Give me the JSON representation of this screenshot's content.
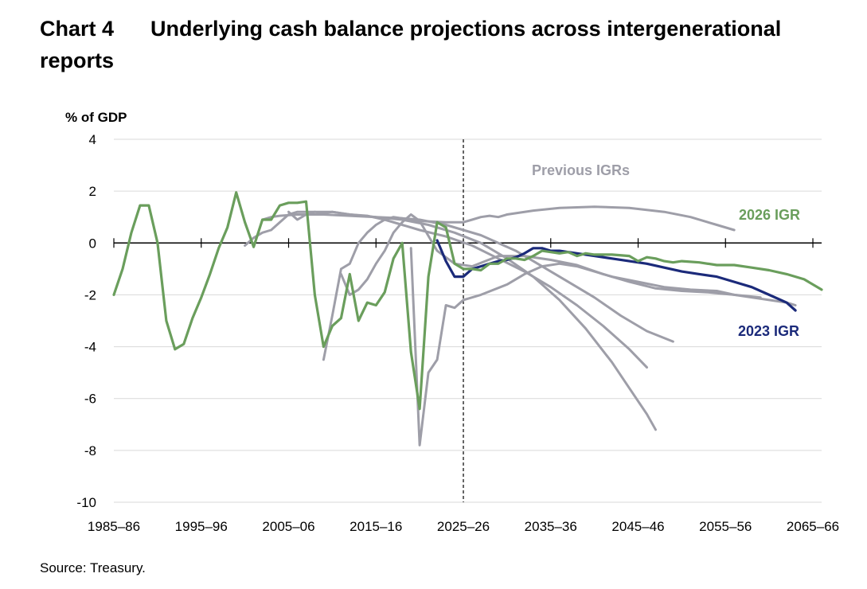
{
  "figure": {
    "number": "Chart 4",
    "title_line1": "Underlying cash balance projections across intergenerational",
    "title_line2": "reports",
    "source": "Source: Treasury."
  },
  "colors": {
    "igr2026": "#6a9e5c",
    "igr2023": "#1b2a7a",
    "previous": "#9e9ea8",
    "gridline": "#d9d9d9",
    "axis": "#000000"
  },
  "chart_data": {
    "type": "line",
    "ylabel": "% of GDP",
    "ylim": [
      -10,
      4
    ],
    "yticks": [
      4,
      2,
      0,
      -2,
      -4,
      -6,
      -8,
      -10
    ],
    "xlim": [
      1985,
      2066
    ],
    "xticks": [
      {
        "year": 1985,
        "label": "1985–86"
      },
      {
        "year": 1995,
        "label": "1995–96"
      },
      {
        "year": 2005,
        "label": "2005–06"
      },
      {
        "year": 2015,
        "label": "2015–16"
      },
      {
        "year": 2025,
        "label": "2025–26"
      },
      {
        "year": 2035,
        "label": "2035–36"
      },
      {
        "year": 2045,
        "label": "2045–46"
      },
      {
        "year": 2055,
        "label": "2055–56"
      },
      {
        "year": 2065,
        "label": "2065–66"
      }
    ],
    "projection_start": 2025,
    "grid": "horizontal",
    "annotations": [
      {
        "text": "Previous IGRs",
        "series": "previous"
      },
      {
        "text": "2026 IGR",
        "series": "igr2026"
      },
      {
        "text": "2023 IGR",
        "series": "igr2023"
      }
    ],
    "series": [
      {
        "key": "prev1",
        "group": "previous",
        "points": [
          [
            2000,
            -0.1
          ],
          [
            2001,
            0.2
          ],
          [
            2002,
            0.4
          ],
          [
            2003,
            0.5
          ],
          [
            2004,
            0.8
          ],
          [
            2005,
            1.1
          ],
          [
            2006,
            1.2
          ],
          [
            2007,
            1.2
          ],
          [
            2008,
            1.2
          ],
          [
            2009,
            1.15
          ],
          [
            2010,
            1.2
          ],
          [
            2012,
            1.1
          ],
          [
            2015,
            1.0
          ],
          [
            2018,
            0.95
          ],
          [
            2020,
            0.85
          ],
          [
            2023,
            0.8
          ],
          [
            2025,
            0.8
          ],
          [
            2026,
            0.9
          ],
          [
            2027,
            1.0
          ],
          [
            2028,
            1.05
          ],
          [
            2029,
            1.0
          ],
          [
            2030,
            1.1
          ],
          [
            2033,
            1.25
          ],
          [
            2036,
            1.35
          ],
          [
            2040,
            1.4
          ],
          [
            2044,
            1.35
          ],
          [
            2048,
            1.2
          ],
          [
            2051,
            1.0
          ],
          [
            2054,
            0.7
          ],
          [
            2056,
            0.5
          ]
        ]
      },
      {
        "key": "prev2",
        "group": "previous",
        "points": [
          [
            2002,
            0.9
          ],
          [
            2003,
            1.0
          ],
          [
            2004,
            1.05
          ],
          [
            2006,
            1.1
          ],
          [
            2009,
            1.1
          ],
          [
            2012,
            1.05
          ],
          [
            2015,
            1.0
          ],
          [
            2018,
            0.9
          ],
          [
            2021,
            0.7
          ],
          [
            2024,
            0.4
          ],
          [
            2027,
            0.0
          ],
          [
            2030,
            -0.6
          ],
          [
            2033,
            -1.3
          ],
          [
            2036,
            -2.2
          ],
          [
            2039,
            -3.3
          ],
          [
            2042,
            -4.6
          ],
          [
            2044,
            -5.6
          ],
          [
            2046,
            -6.6
          ],
          [
            2047,
            -7.2
          ]
        ]
      },
      {
        "key": "prev3",
        "group": "previous",
        "points": [
          [
            2005,
            1.2
          ],
          [
            2006,
            0.9
          ],
          [
            2007,
            1.1
          ],
          [
            2008,
            1.2
          ],
          [
            2010,
            1.2
          ],
          [
            2012,
            1.1
          ],
          [
            2014,
            1.05
          ],
          [
            2016,
            0.9
          ],
          [
            2018,
            0.7
          ],
          [
            2020,
            0.5
          ],
          [
            2023,
            0.25
          ],
          [
            2026,
            -0.1
          ],
          [
            2029,
            -0.6
          ],
          [
            2032,
            -1.1
          ],
          [
            2035,
            -1.7
          ],
          [
            2038,
            -2.4
          ],
          [
            2041,
            -3.2
          ],
          [
            2044,
            -4.1
          ],
          [
            2046,
            -4.8
          ]
        ]
      },
      {
        "key": "prev4",
        "group": "previous",
        "points": [
          [
            2009,
            -4.5
          ],
          [
            2010,
            -2.8
          ],
          [
            2011,
            -1.0
          ],
          [
            2012,
            -0.8
          ],
          [
            2013,
            0.0
          ],
          [
            2014,
            0.4
          ],
          [
            2015,
            0.7
          ],
          [
            2016,
            0.9
          ],
          [
            2017,
            1.0
          ],
          [
            2018,
            0.95
          ],
          [
            2020,
            0.9
          ],
          [
            2023,
            0.7
          ],
          [
            2025,
            0.5
          ],
          [
            2027,
            0.3
          ],
          [
            2029,
            0.0
          ],
          [
            2031,
            -0.3
          ],
          [
            2034,
            -0.9
          ],
          [
            2037,
            -1.5
          ],
          [
            2040,
            -2.1
          ],
          [
            2043,
            -2.8
          ],
          [
            2046,
            -3.4
          ],
          [
            2049,
            -3.8
          ]
        ]
      },
      {
        "key": "prev5",
        "group": "previous",
        "points": [
          [
            2011,
            -1.2
          ],
          [
            2012,
            -2.0
          ],
          [
            2013,
            -1.8
          ],
          [
            2014,
            -1.4
          ],
          [
            2015,
            -0.8
          ],
          [
            2016,
            -0.3
          ],
          [
            2017,
            0.4
          ],
          [
            2018,
            0.8
          ],
          [
            2019,
            1.1
          ],
          [
            2020,
            0.85
          ],
          [
            2022,
            -0.3
          ],
          [
            2024,
            -0.8
          ],
          [
            2026,
            -0.9
          ],
          [
            2029,
            -0.5
          ],
          [
            2032,
            -0.5
          ],
          [
            2035,
            -0.65
          ],
          [
            2038,
            -0.85
          ],
          [
            2041,
            -1.2
          ],
          [
            2044,
            -1.5
          ],
          [
            2047,
            -1.75
          ],
          [
            2050,
            -1.85
          ],
          [
            2053,
            -1.9
          ],
          [
            2056,
            -2.0
          ],
          [
            2058,
            -2.1
          ],
          [
            2060,
            -2.2
          ],
          [
            2062,
            -2.3
          ],
          [
            2063,
            -2.4
          ]
        ]
      },
      {
        "key": "prev6",
        "group": "previous",
        "points": [
          [
            2019,
            -0.2
          ],
          [
            2020,
            -7.8
          ],
          [
            2021,
            -5.0
          ],
          [
            2022,
            -4.5
          ],
          [
            2023,
            -2.4
          ],
          [
            2024,
            -2.5
          ],
          [
            2025,
            -2.2
          ],
          [
            2027,
            -2.0
          ],
          [
            2030,
            -1.6
          ],
          [
            2032,
            -1.2
          ],
          [
            2034,
            -0.9
          ],
          [
            2036,
            -0.8
          ],
          [
            2038,
            -0.9
          ],
          [
            2040,
            -1.1
          ],
          [
            2042,
            -1.3
          ],
          [
            2045,
            -1.5
          ],
          [
            2048,
            -1.7
          ],
          [
            2051,
            -1.8
          ],
          [
            2054,
            -1.85
          ],
          [
            2056,
            -2.0
          ],
          [
            2059,
            -2.1
          ]
        ]
      },
      {
        "key": "igr2023",
        "group": "igr2023",
        "points": [
          [
            2022,
            0.1
          ],
          [
            2023,
            -0.7
          ],
          [
            2024,
            -1.3
          ],
          [
            2025,
            -1.3
          ],
          [
            2026,
            -1.0
          ],
          [
            2027,
            -0.9
          ],
          [
            2028,
            -0.8
          ],
          [
            2029,
            -0.7
          ],
          [
            2030,
            -0.65
          ],
          [
            2031,
            -0.55
          ],
          [
            2032,
            -0.4
          ],
          [
            2033,
            -0.2
          ],
          [
            2034,
            -0.2
          ],
          [
            2035,
            -0.3
          ],
          [
            2036,
            -0.3
          ],
          [
            2037,
            -0.35
          ],
          [
            2038,
            -0.4
          ],
          [
            2039,
            -0.45
          ],
          [
            2040,
            -0.5
          ],
          [
            2042,
            -0.6
          ],
          [
            2044,
            -0.7
          ],
          [
            2046,
            -0.8
          ],
          [
            2048,
            -0.95
          ],
          [
            2050,
            -1.1
          ],
          [
            2052,
            -1.2
          ],
          [
            2054,
            -1.3
          ],
          [
            2056,
            -1.5
          ],
          [
            2058,
            -1.7
          ],
          [
            2060,
            -2.0
          ],
          [
            2062,
            -2.3
          ],
          [
            2063,
            -2.6
          ]
        ]
      },
      {
        "key": "igr2026",
        "group": "igr2026",
        "points": [
          [
            1985,
            -2.0
          ],
          [
            1986,
            -1.0
          ],
          [
            1987,
            0.4
          ],
          [
            1988,
            1.45
          ],
          [
            1989,
            1.45
          ],
          [
            1990,
            0.0
          ],
          [
            1991,
            -3.0
          ],
          [
            1992,
            -4.1
          ],
          [
            1993,
            -3.9
          ],
          [
            1994,
            -2.9
          ],
          [
            1995,
            -2.1
          ],
          [
            1996,
            -1.2
          ],
          [
            1997,
            -0.2
          ],
          [
            1998,
            0.6
          ],
          [
            1999,
            1.95
          ],
          [
            2000,
            0.8
          ],
          [
            2001,
            -0.15
          ],
          [
            2002,
            0.9
          ],
          [
            2003,
            0.9
          ],
          [
            2004,
            1.45
          ],
          [
            2005,
            1.55
          ],
          [
            2006,
            1.55
          ],
          [
            2007,
            1.6
          ],
          [
            2008,
            -2.0
          ],
          [
            2009,
            -4.0
          ],
          [
            2010,
            -3.2
          ],
          [
            2011,
            -2.9
          ],
          [
            2012,
            -1.2
          ],
          [
            2013,
            -3.0
          ],
          [
            2014,
            -2.3
          ],
          [
            2015,
            -2.4
          ],
          [
            2016,
            -1.9
          ],
          [
            2017,
            -0.6
          ],
          [
            2018,
            0.0
          ],
          [
            2019,
            -4.2
          ],
          [
            2020,
            -6.4
          ],
          [
            2021,
            -1.3
          ],
          [
            2022,
            0.8
          ],
          [
            2023,
            0.6
          ],
          [
            2024,
            -0.8
          ],
          [
            2025,
            -1.0
          ],
          [
            2026,
            -1.0
          ],
          [
            2027,
            -1.05
          ],
          [
            2028,
            -0.8
          ],
          [
            2029,
            -0.8
          ],
          [
            2030,
            -0.6
          ],
          [
            2031,
            -0.6
          ],
          [
            2032,
            -0.65
          ],
          [
            2033,
            -0.5
          ],
          [
            2034,
            -0.3
          ],
          [
            2035,
            -0.35
          ],
          [
            2036,
            -0.4
          ],
          [
            2037,
            -0.35
          ],
          [
            2038,
            -0.5
          ],
          [
            2039,
            -0.4
          ],
          [
            2040,
            -0.45
          ],
          [
            2042,
            -0.45
          ],
          [
            2044,
            -0.5
          ],
          [
            2045,
            -0.7
          ],
          [
            2046,
            -0.55
          ],
          [
            2047,
            -0.6
          ],
          [
            2048,
            -0.7
          ],
          [
            2049,
            -0.75
          ],
          [
            2050,
            -0.7
          ],
          [
            2052,
            -0.75
          ],
          [
            2054,
            -0.85
          ],
          [
            2056,
            -0.85
          ],
          [
            2058,
            -0.95
          ],
          [
            2060,
            -1.05
          ],
          [
            2062,
            -1.2
          ],
          [
            2064,
            -1.4
          ],
          [
            2066,
            -1.8
          ]
        ]
      }
    ]
  }
}
